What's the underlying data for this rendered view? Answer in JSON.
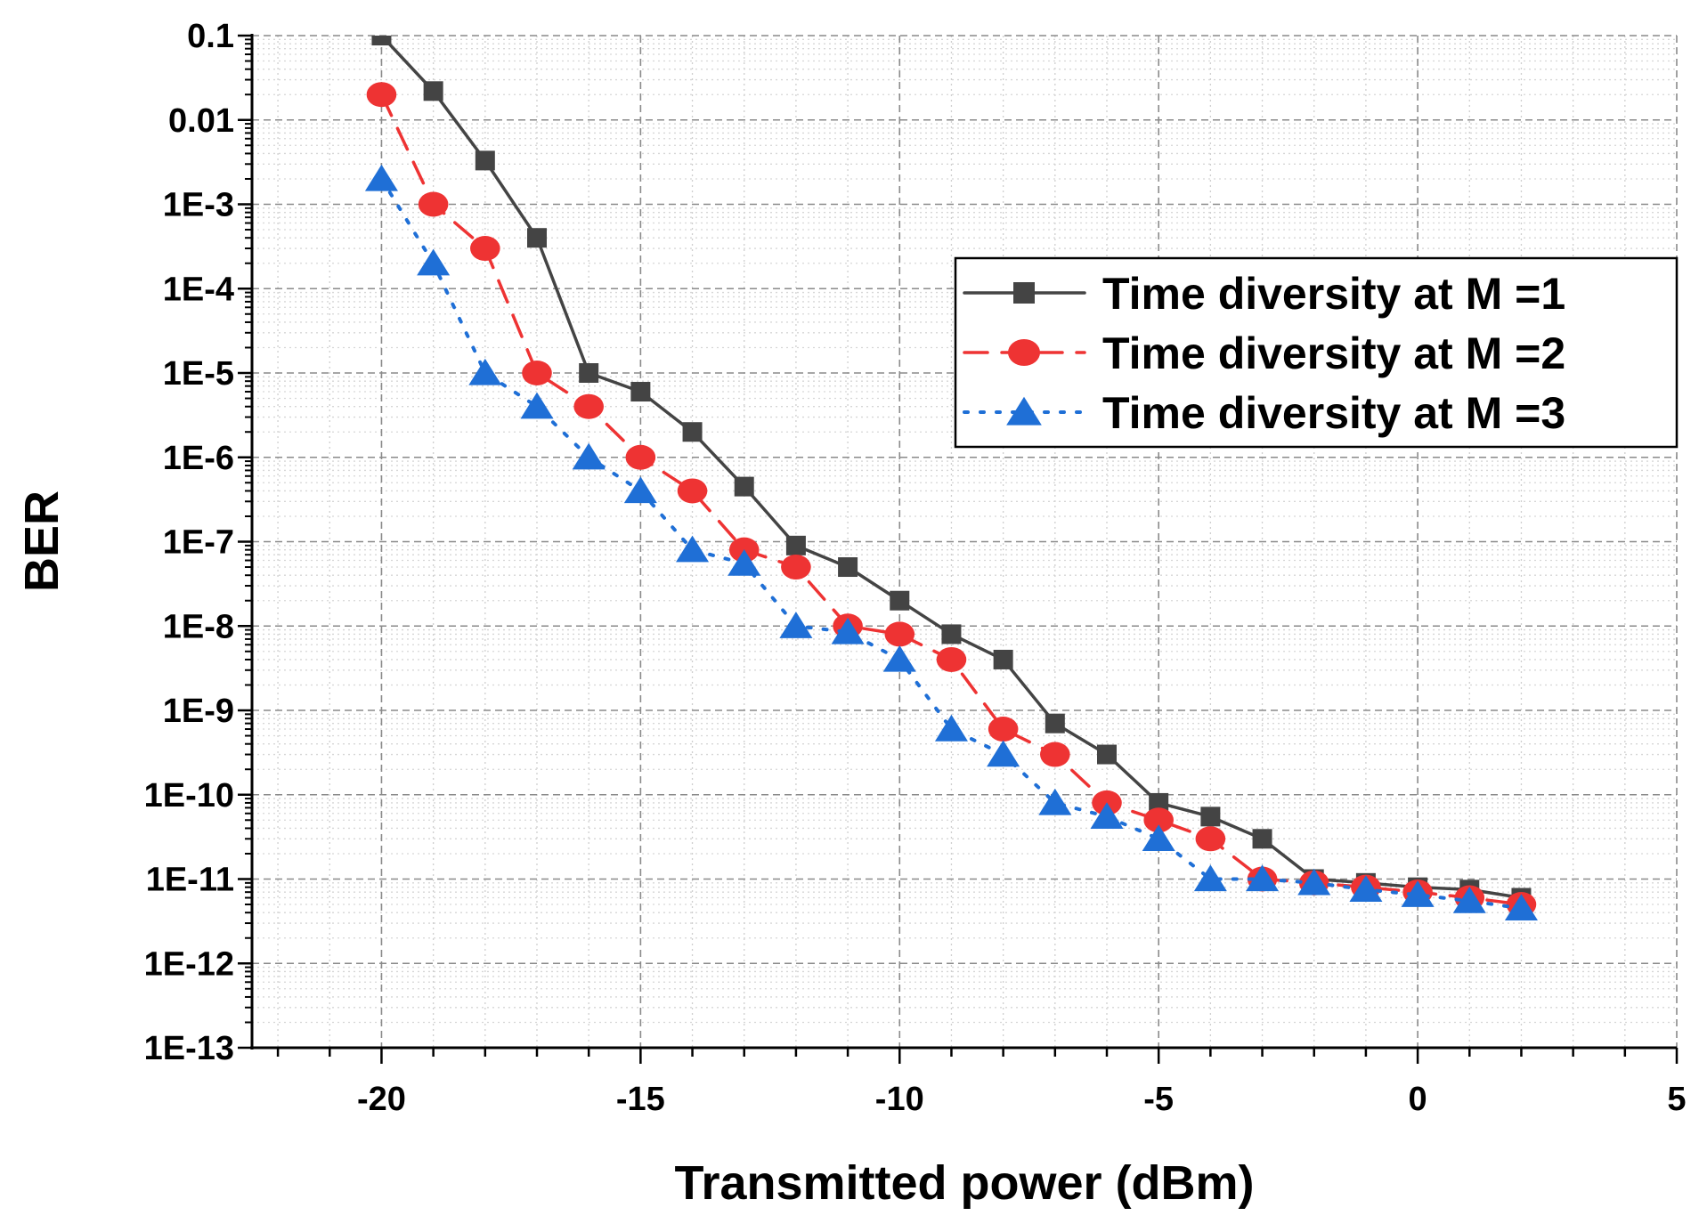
{
  "chart_data": {
    "type": "line",
    "xlabel": "Transmitted power (dBm)",
    "ylabel": "BER",
    "xscale": "linear",
    "yscale": "log",
    "xlim": [
      -22.5,
      5
    ],
    "ylim": [
      1e-13,
      0.1
    ],
    "x_ticks": [
      -20,
      -15,
      -10,
      -5,
      0,
      5
    ],
    "x_tick_labels": [
      "-20",
      "-15",
      "-10",
      "-5",
      "0",
      "5"
    ],
    "y_ticks": [
      0.1,
      0.01,
      0.001,
      0.0001,
      1e-05,
      1e-06,
      1e-07,
      1e-08,
      1e-09,
      1e-10,
      1e-11,
      1e-12,
      1e-13
    ],
    "y_tick_labels": [
      "0.1",
      "0.01",
      "1E-3",
      "1E-4",
      "1E-5",
      "1E-6",
      "1E-7",
      "1E-8",
      "1E-9",
      "1E-10",
      "1E-11",
      "1E-12",
      "1E-13"
    ],
    "grid": true,
    "legend_position": "top-right",
    "series": [
      {
        "name": "Time diversity at M =1",
        "color": "#444444",
        "line_style": "solid",
        "marker": "square",
        "x": [
          -20,
          -19,
          -18,
          -17,
          -16,
          -15,
          -14,
          -13,
          -12,
          -11,
          -10,
          -9,
          -8,
          -7,
          -6,
          -5,
          -4,
          -3,
          -2,
          -1,
          0,
          1,
          2
        ],
        "y": [
          0.1,
          0.022,
          0.0033,
          0.0004,
          1e-05,
          6e-06,
          2e-06,
          4.5e-07,
          9e-08,
          5e-08,
          2e-08,
          8e-09,
          4e-09,
          7e-10,
          3e-10,
          8e-11,
          5.5e-11,
          3e-11,
          1e-11,
          9e-12,
          8e-12,
          7.5e-12,
          6e-12
        ]
      },
      {
        "name": "Time diversity at M =2",
        "color": "#ee3333",
        "line_style": "dashed",
        "marker": "circle",
        "x": [
          -20,
          -19,
          -18,
          -17,
          -16,
          -15,
          -14,
          -13,
          -12,
          -11,
          -10,
          -9,
          -8,
          -7,
          -6,
          -5,
          -4,
          -3,
          -2,
          -1,
          0,
          1,
          2
        ],
        "y": [
          0.02,
          0.001,
          0.0003,
          1e-05,
          4e-06,
          1e-06,
          4e-07,
          8e-08,
          5e-08,
          1e-08,
          8e-09,
          4e-09,
          6e-10,
          3e-10,
          8e-11,
          5e-11,
          3e-11,
          1e-11,
          9e-12,
          8e-12,
          7e-12,
          6e-12,
          5e-12
        ]
      },
      {
        "name": "Time diversity at M =3",
        "color": "#1f6fd6",
        "line_style": "dotted",
        "marker": "triangle",
        "x": [
          -20,
          -19,
          -18,
          -17,
          -16,
          -15,
          -14,
          -13,
          -12,
          -11,
          -10,
          -9,
          -8,
          -7,
          -6,
          -5,
          -4,
          -3,
          -2,
          -1,
          0,
          1,
          2
        ],
        "y": [
          0.002,
          0.0002,
          1e-05,
          4e-06,
          1e-06,
          4e-07,
          8e-08,
          5.5e-08,
          1e-08,
          8.5e-09,
          4e-09,
          6e-10,
          3e-10,
          8e-11,
          5.5e-11,
          3e-11,
          1e-11,
          1e-11,
          9e-12,
          7.5e-12,
          6.5e-12,
          5.5e-12,
          4.5e-12
        ]
      }
    ]
  }
}
